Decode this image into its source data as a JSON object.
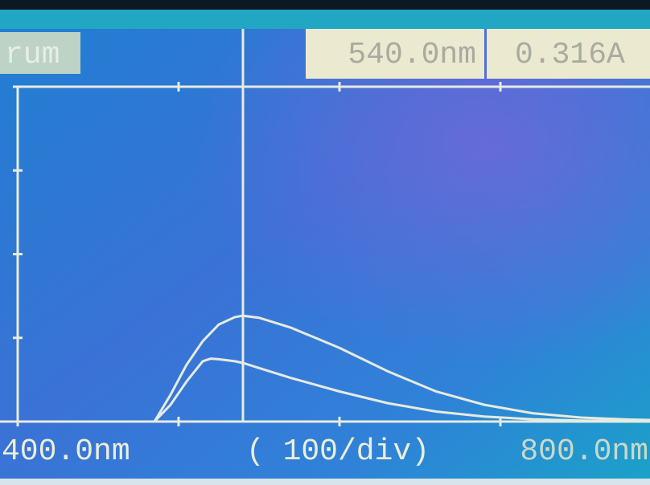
{
  "chart_data": {
    "type": "line",
    "title": "rum",
    "cursor": {
      "x": {
        "value": 540,
        "label": "540.0nm"
      },
      "y": {
        "value": 0.316,
        "label": "0.316A"
      }
    },
    "xlabel": "( 100/div)",
    "xlim": [
      400,
      800
    ],
    "xticks": [
      {
        "value": 400,
        "label": "400.0nm"
      },
      {
        "value": 800,
        "label": "800.0nm"
      }
    ],
    "xminor": [
      500,
      600,
      700
    ],
    "ylim": [
      0,
      1
    ],
    "yticks": [
      0,
      0.25,
      0.5,
      0.75,
      1
    ],
    "x": [
      485,
      495,
      505,
      515,
      520,
      525,
      535,
      540,
      550,
      570,
      600,
      630,
      660,
      690,
      720,
      750,
      780,
      800
    ],
    "series": [
      {
        "color": "#e6ebe0",
        "values": [
          0,
          0.08,
          0.17,
          0.24,
          0.265,
          0.29,
          0.312,
          0.316,
          0.31,
          0.28,
          0.22,
          0.15,
          0.09,
          0.05,
          0.025,
          0.012,
          0.006,
          0.004
        ]
      },
      {
        "color": "#e6ebe0",
        "values": [
          0,
          0.05,
          0.12,
          0.18,
          0.188,
          0.186,
          0.18,
          0.175,
          0.16,
          0.13,
          0.09,
          0.055,
          0.03,
          0.015,
          0.007,
          0.003,
          0.002,
          0.001
        ]
      }
    ]
  }
}
